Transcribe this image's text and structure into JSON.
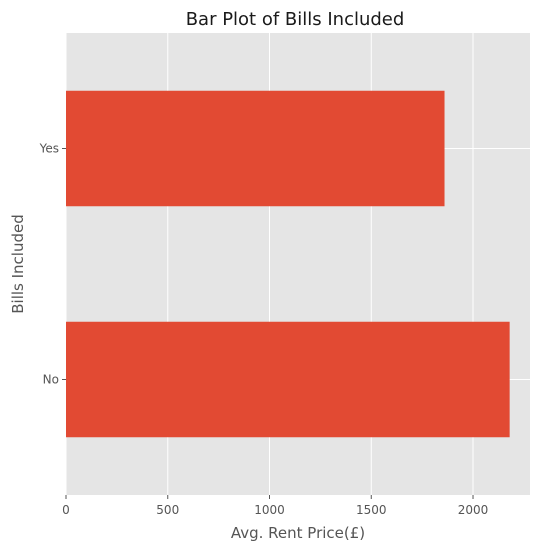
{
  "chart_data": {
    "type": "bar",
    "orientation": "horizontal",
    "title": "Bar Plot of Bills Included",
    "xlabel": "Avg. Rent Price(£)",
    "ylabel": "Bills Included",
    "categories": [
      "No",
      "Yes"
    ],
    "values": [
      2180,
      1860
    ],
    "xlim": [
      0,
      2280
    ],
    "xticks": [
      0,
      500,
      1000,
      1500,
      2000
    ],
    "grid": true,
    "colors": {
      "bar": "#E24A33",
      "plot_background": "#E5E5E5",
      "grid": "#FFFFFF"
    }
  }
}
